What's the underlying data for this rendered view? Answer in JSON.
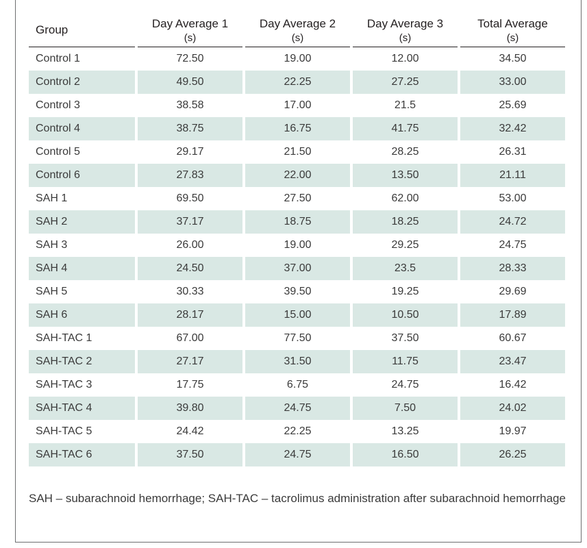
{
  "table": {
    "headers": [
      {
        "label": "Group",
        "unit": ""
      },
      {
        "label": "Day Average 1",
        "unit": "(s)"
      },
      {
        "label": "Day Average 2",
        "unit": "(s)"
      },
      {
        "label": "Day Average 3",
        "unit": "(s)"
      },
      {
        "label": "Total Average",
        "unit": "(s)"
      }
    ],
    "rows": [
      [
        "Control 1",
        "72.50",
        "19.00",
        "12.00",
        "34.50"
      ],
      [
        "Control 2",
        "49.50",
        "22.25",
        "27.25",
        "33.00"
      ],
      [
        "Control 3",
        "38.58",
        "17.00",
        "21.5",
        "25.69"
      ],
      [
        "Control 4",
        "38.75",
        "16.75",
        "41.75",
        "32.42"
      ],
      [
        "Control 5",
        "29.17",
        "21.50",
        "28.25",
        "26.31"
      ],
      [
        "Control 6",
        "27.83",
        "22.00",
        "13.50",
        "21.11"
      ],
      [
        "SAH 1",
        "69.50",
        "27.50",
        "62.00",
        "53.00"
      ],
      [
        "SAH 2",
        "37.17",
        "18.75",
        "18.25",
        "24.72"
      ],
      [
        "SAH 3",
        "26.00",
        "19.00",
        "29.25",
        "24.75"
      ],
      [
        "SAH 4",
        "24.50",
        "37.00",
        "23.5",
        "28.33"
      ],
      [
        "SAH 5",
        "30.33",
        "39.50",
        "19.25",
        "29.69"
      ],
      [
        "SAH 6",
        "28.17",
        "15.00",
        "10.50",
        "17.89"
      ],
      [
        "SAH-TAC 1",
        "67.00",
        "77.50",
        "37.50",
        "60.67"
      ],
      [
        "SAH-TAC 2",
        "27.17",
        "31.50",
        "11.75",
        "23.47"
      ],
      [
        "SAH-TAC 3",
        "17.75",
        "6.75",
        "24.75",
        "16.42"
      ],
      [
        "SAH-TAC 4",
        "39.80",
        "24.75",
        "7.50",
        "24.02"
      ],
      [
        "SAH-TAC 5",
        "24.42",
        "22.25",
        "13.25",
        "19.97"
      ],
      [
        "SAH-TAC 6",
        "37.50",
        "24.75",
        "16.50",
        "26.25"
      ]
    ]
  },
  "footnote": "SAH – subarachnoid hemorrhage; SAH-TAC – tacrolimus administration after subarachnoid hemorrhage",
  "colors": {
    "row_shade": "#d9e8e4",
    "text": "#231f20",
    "border": "#6d6e70"
  }
}
